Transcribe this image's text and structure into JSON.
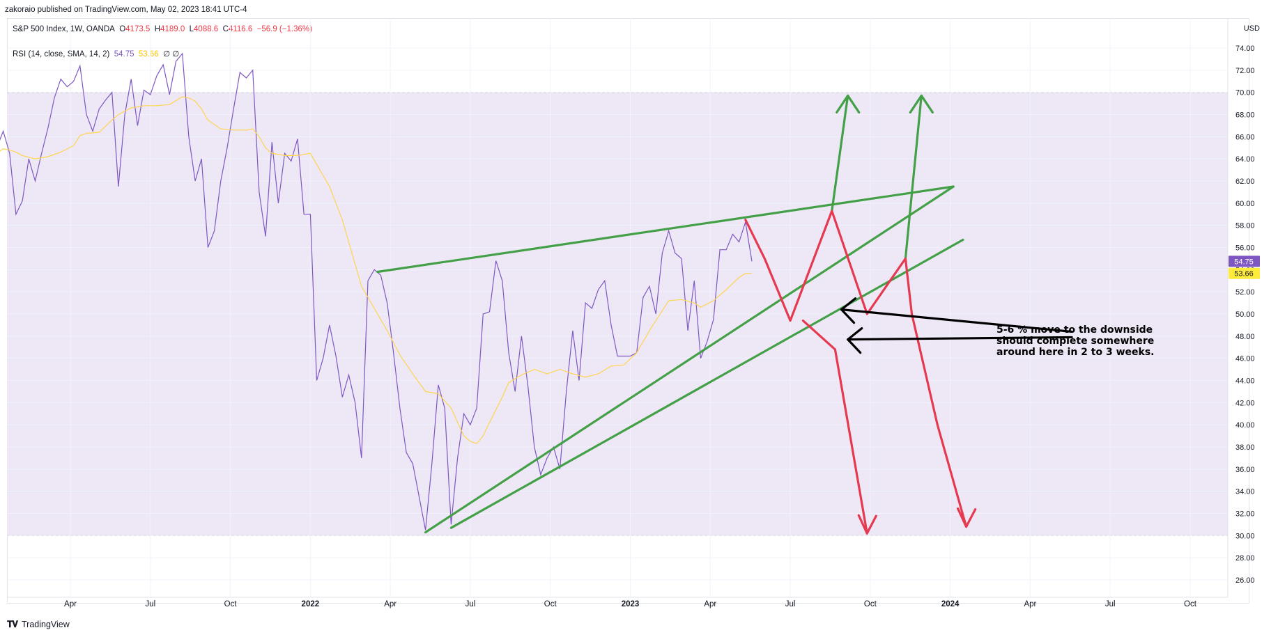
{
  "header": {
    "publisher": "zakoraio published on TradingView.com, May 02, 2023 18:41 UTC-4",
    "currency": "USD"
  },
  "price_legend": {
    "symbol": "S&P 500 Index, 1W, OANDA",
    "o_label": "O",
    "o": "4173.5",
    "h_label": "H",
    "h": "4189.0",
    "l_label": "L",
    "l": "4088.6",
    "c_label": "C",
    "c": "4116.6",
    "change": "−56.9 (−1.36%)"
  },
  "rsi_legend": {
    "name": "RSI (14, close, SMA, 14, 2)",
    "rsi": "54.75",
    "sma": "53.66",
    "extra": "∅ ∅"
  },
  "footer": {
    "brand": "TradingView",
    "logo": "TV-logo"
  },
  "annotation": {
    "lines": [
      "5-6 % move to the downside",
      "should complete somewhere",
      "around here in 2 to 3 weeks."
    ]
  },
  "colors": {
    "rsi": "#7e57c2",
    "sma": "#ffd54f",
    "band": "#ede7f6",
    "green": "#43a047",
    "red": "#e53950",
    "black": "#000000",
    "rsi_badge": "#7e57c2",
    "sma_badge": "#ffeb3b"
  },
  "chart_data": {
    "type": "line",
    "ylim": [
      25,
      74.5
    ],
    "y_ticks": [
      "74.00",
      "72.00",
      "70.00",
      "68.00",
      "66.00",
      "64.00",
      "62.00",
      "60.00",
      "58.00",
      "56.00",
      "54.00",
      "52.00",
      "50.00",
      "48.00",
      "46.00",
      "44.00",
      "42.00",
      "40.00",
      "38.00",
      "36.00",
      "34.00",
      "32.00",
      "30.00",
      "28.00",
      "26.00"
    ],
    "x_ticks": [
      {
        "label": "Apr",
        "t": 2021.25,
        "bold": false
      },
      {
        "label": "Jul",
        "t": 2021.5,
        "bold": false
      },
      {
        "label": "Oct",
        "t": 2021.75,
        "bold": false
      },
      {
        "label": "2022",
        "t": 2022.0,
        "bold": true
      },
      {
        "label": "Apr",
        "t": 2022.25,
        "bold": false
      },
      {
        "label": "Jul",
        "t": 2022.5,
        "bold": false
      },
      {
        "label": "Oct",
        "t": 2022.75,
        "bold": false
      },
      {
        "label": "2023",
        "t": 2023.0,
        "bold": true
      },
      {
        "label": "Apr",
        "t": 2023.25,
        "bold": false
      },
      {
        "label": "Jul",
        "t": 2023.5,
        "bold": false
      },
      {
        "label": "Oct",
        "t": 2023.75,
        "bold": false
      },
      {
        "label": "2024",
        "t": 2024.0,
        "bold": true
      },
      {
        "label": "Apr",
        "t": 2024.25,
        "bold": false
      },
      {
        "label": "Jul",
        "t": 2024.5,
        "bold": false
      },
      {
        "label": "Oct",
        "t": 2024.75,
        "bold": false
      }
    ],
    "bands": {
      "upper": 70,
      "middle": 50,
      "lower": 30
    },
    "series": [
      {
        "name": "RSI",
        "color": "#7e57c2",
        "points": [
          [
            2021.0,
            62.8
          ],
          [
            2021.01,
            58.5
          ],
          [
            2021.02,
            65.0
          ],
          [
            2021.04,
            66.5
          ],
          [
            2021.06,
            64.5
          ],
          [
            2021.08,
            59.0
          ],
          [
            2021.1,
            60.2
          ],
          [
            2021.12,
            64.0
          ],
          [
            2021.14,
            62.0
          ],
          [
            2021.16,
            64.5
          ],
          [
            2021.18,
            66.8
          ],
          [
            2021.2,
            69.5
          ],
          [
            2021.22,
            71.2
          ],
          [
            2021.24,
            70.5
          ],
          [
            2021.26,
            71.0
          ],
          [
            2021.28,
            72.4
          ],
          [
            2021.3,
            68.0
          ],
          [
            2021.32,
            66.5
          ],
          [
            2021.34,
            68.5
          ],
          [
            2021.36,
            69.3
          ],
          [
            2021.38,
            70.0
          ],
          [
            2021.4,
            61.5
          ],
          [
            2021.42,
            68.0
          ],
          [
            2021.44,
            71.2
          ],
          [
            2021.46,
            67.0
          ],
          [
            2021.48,
            70.2
          ],
          [
            2021.5,
            69.8
          ],
          [
            2021.52,
            71.5
          ],
          [
            2021.54,
            72.5
          ],
          [
            2021.56,
            69.8
          ],
          [
            2021.58,
            72.8
          ],
          [
            2021.6,
            73.5
          ],
          [
            2021.62,
            66.0
          ],
          [
            2021.64,
            62.0
          ],
          [
            2021.66,
            64.0
          ],
          [
            2021.68,
            56.0
          ],
          [
            2021.7,
            57.5
          ],
          [
            2021.72,
            62.0
          ],
          [
            2021.74,
            65.0
          ],
          [
            2021.76,
            68.5
          ],
          [
            2021.78,
            71.8
          ],
          [
            2021.8,
            71.3
          ],
          [
            2021.82,
            72.0
          ],
          [
            2021.84,
            61.0
          ],
          [
            2021.86,
            57.0
          ],
          [
            2021.88,
            65.5
          ],
          [
            2021.9,
            60.0
          ],
          [
            2021.92,
            64.5
          ],
          [
            2021.94,
            63.8
          ],
          [
            2021.96,
            65.8
          ],
          [
            2021.98,
            59.0
          ],
          [
            2022.0,
            59.0
          ],
          [
            2022.02,
            44.0
          ],
          [
            2022.04,
            46.0
          ],
          [
            2022.06,
            49.0
          ],
          [
            2022.08,
            46.2
          ],
          [
            2022.1,
            42.5
          ],
          [
            2022.12,
            44.5
          ],
          [
            2022.14,
            42.0
          ],
          [
            2022.16,
            37.0
          ],
          [
            2022.18,
            53.0
          ],
          [
            2022.2,
            54.0
          ],
          [
            2022.22,
            53.5
          ],
          [
            2022.24,
            51.0
          ],
          [
            2022.26,
            46.5
          ],
          [
            2022.28,
            41.5
          ],
          [
            2022.3,
            37.5
          ],
          [
            2022.32,
            36.5
          ],
          [
            2022.34,
            33.5
          ],
          [
            2022.36,
            30.5
          ],
          [
            2022.38,
            36.5
          ],
          [
            2022.4,
            43.6
          ],
          [
            2022.42,
            41.5
          ],
          [
            2022.44,
            31.0
          ],
          [
            2022.46,
            37.0
          ],
          [
            2022.48,
            41.0
          ],
          [
            2022.5,
            40.0
          ],
          [
            2022.52,
            41.5
          ],
          [
            2022.54,
            50.0
          ],
          [
            2022.56,
            50.2
          ],
          [
            2022.58,
            54.8
          ],
          [
            2022.6,
            53.0
          ],
          [
            2022.62,
            46.5
          ],
          [
            2022.64,
            43.0
          ],
          [
            2022.66,
            48.0
          ],
          [
            2022.68,
            43.5
          ],
          [
            2022.7,
            38.0
          ],
          [
            2022.72,
            35.5
          ],
          [
            2022.74,
            37.0
          ],
          [
            2022.76,
            38.0
          ],
          [
            2022.78,
            36.0
          ],
          [
            2022.8,
            43.0
          ],
          [
            2022.82,
            48.5
          ],
          [
            2022.84,
            44.0
          ],
          [
            2022.86,
            51.0
          ],
          [
            2022.88,
            50.5
          ],
          [
            2022.9,
            52.2
          ],
          [
            2022.92,
            53.0
          ],
          [
            2022.94,
            49.0
          ],
          [
            2022.96,
            46.2
          ],
          [
            2022.98,
            46.2
          ],
          [
            2023.0,
            46.2
          ],
          [
            2023.02,
            46.5
          ],
          [
            2023.04,
            51.5
          ],
          [
            2023.06,
            52.5
          ],
          [
            2023.08,
            50.0
          ],
          [
            2023.1,
            55.5
          ],
          [
            2023.12,
            57.5
          ],
          [
            2023.14,
            55.5
          ],
          [
            2023.16,
            55.0
          ],
          [
            2023.18,
            48.5
          ],
          [
            2023.2,
            53.0
          ],
          [
            2023.22,
            46.0
          ],
          [
            2023.24,
            47.5
          ],
          [
            2023.26,
            49.5
          ],
          [
            2023.28,
            55.8
          ],
          [
            2023.3,
            55.8
          ],
          [
            2023.32,
            57.2
          ],
          [
            2023.34,
            56.5
          ],
          [
            2023.36,
            58.3
          ],
          [
            2023.38,
            54.75
          ]
        ]
      },
      {
        "name": "RSI-based MA",
        "color": "#ffd54f",
        "points": [
          [
            2021.0,
            63.5
          ],
          [
            2021.02,
            64.5
          ],
          [
            2021.04,
            64.9
          ],
          [
            2021.06,
            64.8
          ],
          [
            2021.08,
            64.6
          ],
          [
            2021.1,
            64.3
          ],
          [
            2021.14,
            64.0
          ],
          [
            2021.18,
            64.2
          ],
          [
            2021.22,
            64.6
          ],
          [
            2021.26,
            65.2
          ],
          [
            2021.28,
            66.1
          ],
          [
            2021.3,
            66.3
          ],
          [
            2021.34,
            66.4
          ],
          [
            2021.38,
            67.5
          ],
          [
            2021.4,
            68.0
          ],
          [
            2021.44,
            68.6
          ],
          [
            2021.48,
            68.8
          ],
          [
            2021.52,
            68.8
          ],
          [
            2021.56,
            68.9
          ],
          [
            2021.6,
            69.6
          ],
          [
            2021.62,
            69.5
          ],
          [
            2021.64,
            69.2
          ],
          [
            2021.66,
            68.5
          ],
          [
            2021.68,
            67.5
          ],
          [
            2021.72,
            66.7
          ],
          [
            2021.76,
            66.6
          ],
          [
            2021.8,
            66.6
          ],
          [
            2021.82,
            66.7
          ],
          [
            2021.84,
            66.0
          ],
          [
            2021.86,
            65.0
          ],
          [
            2021.88,
            64.5
          ],
          [
            2021.92,
            64.3
          ],
          [
            2021.96,
            64.3
          ],
          [
            2022.0,
            64.5
          ],
          [
            2022.02,
            63.5
          ],
          [
            2022.06,
            61.5
          ],
          [
            2022.1,
            58.5
          ],
          [
            2022.14,
            54.5
          ],
          [
            2022.16,
            52.5
          ],
          [
            2022.2,
            50.5
          ],
          [
            2022.24,
            48.5
          ],
          [
            2022.28,
            46.3
          ],
          [
            2022.32,
            44.6
          ],
          [
            2022.36,
            43.0
          ],
          [
            2022.4,
            42.8
          ],
          [
            2022.44,
            41.5
          ],
          [
            2022.48,
            39.0
          ],
          [
            2022.5,
            38.5
          ],
          [
            2022.52,
            38.3
          ],
          [
            2022.54,
            39.0
          ],
          [
            2022.56,
            40.2
          ],
          [
            2022.6,
            42.5
          ],
          [
            2022.62,
            43.8
          ],
          [
            2022.66,
            44.5
          ],
          [
            2022.7,
            45.0
          ],
          [
            2022.74,
            44.6
          ],
          [
            2022.78,
            45.0
          ],
          [
            2022.82,
            44.6
          ],
          [
            2022.86,
            44.3
          ],
          [
            2022.9,
            44.6
          ],
          [
            2022.94,
            45.3
          ],
          [
            2022.98,
            45.4
          ],
          [
            2023.02,
            46.5
          ],
          [
            2023.06,
            48.5
          ],
          [
            2023.1,
            50.3
          ],
          [
            2023.12,
            51.2
          ],
          [
            2023.16,
            51.3
          ],
          [
            2023.2,
            51.0
          ],
          [
            2023.22,
            50.6
          ],
          [
            2023.26,
            51.2
          ],
          [
            2023.3,
            52.2
          ],
          [
            2023.34,
            53.3
          ],
          [
            2023.36,
            53.66
          ],
          [
            2023.38,
            53.66
          ]
        ]
      }
    ],
    "drawings": {
      "green_lines": [
        [
          [
            2022.21,
            53.8
          ],
          [
            2024.01,
            61.5
          ]
        ],
        [
          [
            2022.36,
            30.3
          ],
          [
            2024.01,
            61.5
          ]
        ],
        [
          [
            2022.44,
            30.7
          ],
          [
            2024.04,
            56.7
          ]
        ],
        [
          [
            2023.63,
            59.3
          ],
          [
            2023.68,
            69.7
          ]
        ],
        [
          [
            2023.86,
            55.0
          ],
          [
            2023.91,
            69.7
          ]
        ]
      ],
      "green_arrowheads": [
        [
          2023.68,
          69.7
        ],
        [
          2023.91,
          69.7
        ]
      ],
      "red_lines": [
        [
          [
            2023.36,
            58.5
          ],
          [
            2023.42,
            55.0
          ],
          [
            2023.5,
            49.4
          ],
          [
            2023.63,
            59.3
          ],
          [
            2023.74,
            50.0
          ],
          [
            2023.86,
            55.0
          ],
          [
            2023.88,
            50.0
          ]
        ],
        [
          [
            2023.54,
            49.4
          ],
          [
            2023.64,
            46.8
          ],
          [
            2023.74,
            30.2
          ]
        ],
        [
          [
            2023.88,
            50.0
          ],
          [
            2023.96,
            40.0
          ],
          [
            2024.05,
            30.8
          ]
        ]
      ],
      "red_arrowheads": [
        [
          2023.74,
          30.2
        ],
        [
          2024.05,
          30.8
        ]
      ],
      "black_arrows": [
        {
          "from": [
            2024.38,
            48.4
          ],
          "to": [
            2023.66,
            50.4
          ]
        },
        {
          "from": [
            2024.38,
            47.9
          ],
          "to": [
            2023.68,
            47.7
          ]
        }
      ]
    }
  }
}
